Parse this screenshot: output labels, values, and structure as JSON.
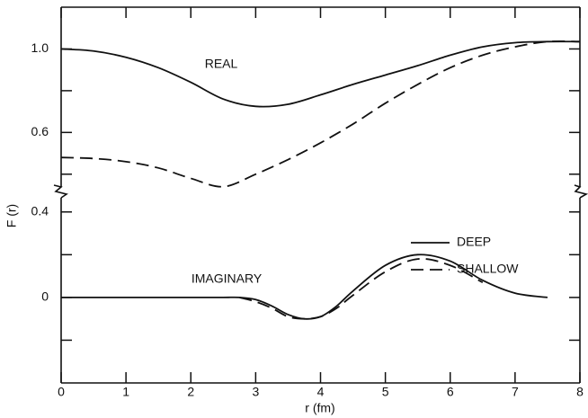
{
  "chart_data": [
    {
      "type": "line",
      "annotation": "REAL",
      "ylabel": "F (r)",
      "x": [
        0,
        0.5,
        1,
        1.5,
        2,
        2.5,
        3,
        3.5,
        4,
        4.5,
        5,
        5.5,
        6,
        6.5,
        7,
        7.5,
        8
      ],
      "series": [
        {
          "name": "DEEP",
          "color": "#111111",
          "style": "solid",
          "values": [
            1.0,
            0.99,
            0.96,
            0.91,
            0.84,
            0.76,
            0.725,
            0.735,
            0.78,
            0.83,
            0.875,
            0.92,
            0.97,
            1.01,
            1.03,
            1.035,
            1.035
          ]
        },
        {
          "name": "SHALLOW",
          "color": "#111111",
          "style": "dashed",
          "values": [
            0.48,
            0.475,
            0.46,
            0.43,
            0.38,
            0.34,
            0.4,
            0.47,
            0.55,
            0.64,
            0.74,
            0.83,
            0.91,
            0.97,
            1.01,
            1.035,
            1.035
          ]
        }
      ],
      "xlim": [
        0,
        8
      ],
      "ylim": [
        0.3,
        1.2
      ],
      "yticks": [
        {
          "value": 1,
          "label": "1.0"
        },
        0.6
      ],
      "yminor": [
        0.8,
        0.4
      ]
    },
    {
      "type": "line",
      "annotation": "IMAGINARY",
      "xlabel": "r (fm)",
      "x": [
        0,
        0.5,
        1,
        1.5,
        2,
        2.5,
        2.75,
        3,
        3.25,
        3.5,
        3.75,
        4,
        4.25,
        4.5,
        5,
        5.5,
        6,
        6.5,
        7,
        7.5
      ],
      "series": [
        {
          "color": "#111111",
          "style": "solid",
          "values": [
            0,
            0,
            0,
            0,
            0,
            0,
            0,
            -0.01,
            -0.04,
            -0.08,
            -0.1,
            -0.09,
            -0.04,
            0.03,
            0.15,
            0.2,
            0.17,
            0.08,
            0.02,
            0
          ]
        },
        {
          "color": "#111111",
          "style": "dashed",
          "values": [
            null,
            null,
            null,
            null,
            null,
            null,
            0,
            -0.02,
            -0.05,
            -0.09,
            -0.1,
            -0.09,
            -0.05,
            0.01,
            0.12,
            0.18,
            0.15,
            0.07,
            null,
            null
          ]
        }
      ],
      "xlim": [
        0,
        8
      ],
      "ylim": [
        -0.4,
        0.5
      ],
      "xticks": [
        0,
        1,
        2,
        3,
        4,
        5,
        6,
        7,
        8
      ],
      "yticks": [
        0.4,
        0
      ],
      "yminor": [
        0.2,
        -0.2
      ]
    }
  ]
}
